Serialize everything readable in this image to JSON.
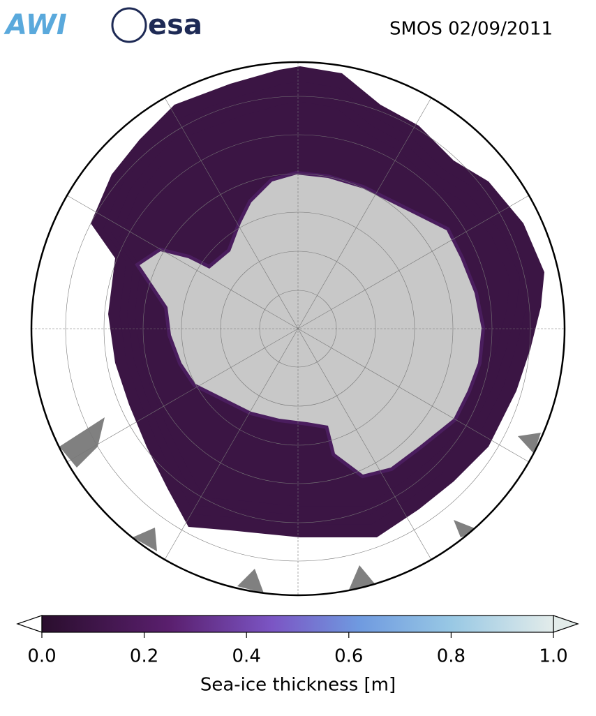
{
  "header": {
    "logos": [
      "AWI",
      "esa"
    ],
    "title": "SMOS 02/09/2011"
  },
  "colorbar": {
    "label": "Sea-ice thickness [m]",
    "xlim": [
      0,
      1
    ],
    "xticks": [
      {
        "value": 0,
        "label": "0.0"
      },
      0.2,
      0.4,
      0.6,
      0.8,
      {
        "value": 1,
        "label": "1.0"
      }
    ]
  }
}
